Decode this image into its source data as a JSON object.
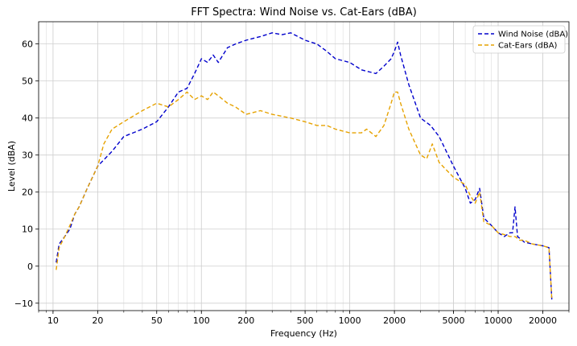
{
  "chart_data": {
    "type": "line",
    "title": "FFT Spectra: Wind Noise vs. Cat-Ears (dBA)",
    "xlabel": "Frequency (Hz)",
    "ylabel": "Level (dBA)",
    "xscale": "log",
    "xlim": [
      8,
      30000
    ],
    "ylim": [
      -12,
      66
    ],
    "grid": true,
    "legend_position": "top-right",
    "x_ticks": [
      10,
      20,
      50,
      100,
      200,
      500,
      1000,
      2000,
      5000,
      10000,
      20000
    ],
    "x_tick_labels": [
      "10",
      "20",
      "50",
      "100",
      "200",
      "500",
      "1000",
      "2000",
      "5000",
      "10000",
      "20000"
    ],
    "y_ticks": [
      -10,
      0,
      10,
      20,
      30,
      40,
      50,
      60
    ],
    "y_tick_labels": [
      "−10",
      "0",
      "10",
      "20",
      "30",
      "40",
      "50",
      "60"
    ],
    "series": [
      {
        "name": "Wind Noise (dBA)",
        "color": "#0000cc",
        "style": "dashed",
        "x": [
          10.5,
          11,
          12,
          13,
          14,
          15,
          17,
          20,
          25,
          30,
          40,
          50,
          60,
          70,
          80,
          90,
          100,
          110,
          120,
          130,
          150,
          170,
          200,
          250,
          300,
          350,
          400,
          500,
          600,
          700,
          800,
          1000,
          1200,
          1500,
          1700,
          1900,
          2000,
          2100,
          2200,
          2500,
          3000,
          3500,
          4000,
          5000,
          6000,
          6500,
          7000,
          7500,
          8000,
          9000,
          10000,
          11000,
          12000,
          12500,
          13000,
          13500,
          14000,
          15000,
          17000,
          20000,
          22000,
          23000
        ],
        "values": [
          1,
          6,
          8,
          10,
          14,
          16,
          21,
          27,
          31,
          35,
          37,
          39,
          43,
          47,
          48,
          52,
          56,
          55,
          57,
          55,
          59,
          60,
          61,
          62,
          63,
          62.5,
          63,
          61,
          60,
          58,
          56,
          55,
          53,
          52,
          54,
          56,
          58,
          60.5,
          57,
          49,
          40,
          38,
          35,
          27,
          21,
          17,
          18,
          21,
          13,
          11,
          9,
          8,
          9,
          9,
          16,
          8,
          7.5,
          6.5,
          6,
          5.5,
          5,
          -9
        ]
      },
      {
        "name": "Cat-Ears (dBA)",
        "color": "#e6a200",
        "style": "dashed",
        "x": [
          10.5,
          11,
          12,
          13,
          14,
          15,
          17,
          20,
          22,
          25,
          30,
          40,
          50,
          60,
          70,
          80,
          90,
          100,
          110,
          120,
          130,
          150,
          170,
          200,
          250,
          300,
          400,
          500,
          600,
          700,
          800,
          1000,
          1200,
          1300,
          1500,
          1700,
          1900,
          2000,
          2100,
          2200,
          2500,
          3000,
          3300,
          3600,
          4000,
          5000,
          6000,
          6500,
          7000,
          7500,
          8000,
          9000,
          10000,
          11000,
          12000,
          13000,
          14000,
          15000,
          17000,
          20000,
          22000,
          23000
        ],
        "values": [
          -1,
          5,
          8,
          11,
          14,
          16,
          21,
          27,
          33,
          37,
          39,
          42,
          44,
          43,
          45,
          47,
          45,
          46,
          45,
          47,
          46,
          44,
          43,
          41,
          42,
          41,
          40,
          39,
          38,
          38,
          37,
          36,
          36,
          37,
          35,
          38,
          44,
          47,
          47,
          44,
          37,
          30,
          29,
          33,
          28,
          24,
          22,
          19,
          17,
          20,
          12,
          11,
          9,
          8.5,
          8,
          8,
          7,
          7,
          6,
          5.5,
          5,
          -9
        ]
      }
    ]
  }
}
